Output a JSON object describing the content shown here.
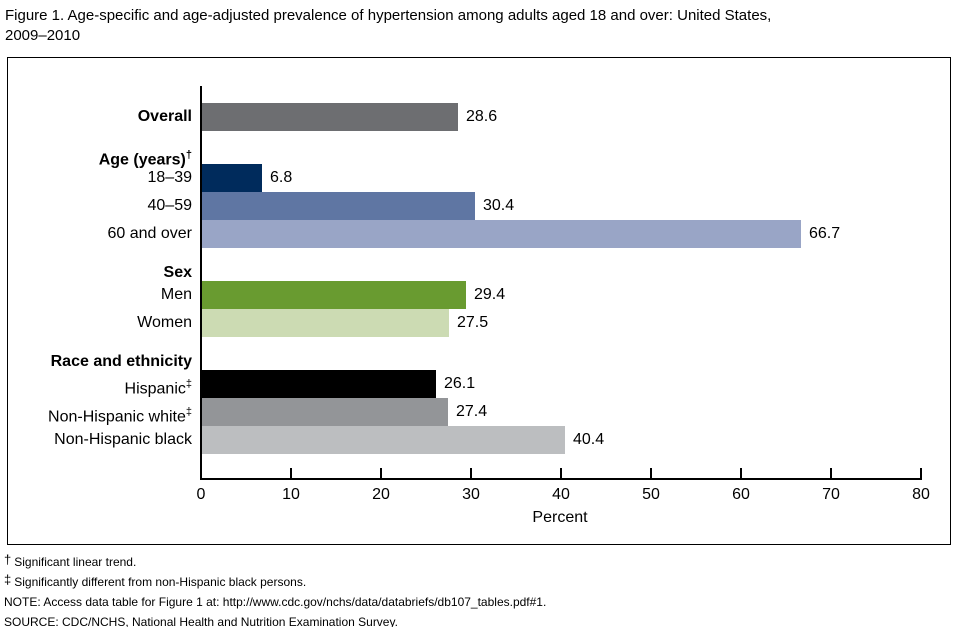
{
  "title": "Figure 1. Age-specific and age-adjusted prevalence of hypertension among adults aged 18 and over: United States,\n2009–2010",
  "chart_data": {
    "type": "bar",
    "orientation": "horizontal",
    "title": "Age-specific and age-adjusted prevalence of hypertension among adults aged 18 and over, United States, 2009–2010",
    "xlabel": "Percent",
    "xlim": [
      0,
      80
    ],
    "xticks": [
      0,
      10,
      20,
      30,
      40,
      50,
      60,
      70,
      80
    ],
    "grid": false,
    "rows": [
      {
        "kind": "bar",
        "label": "Overall",
        "bold": true,
        "value": 28.6,
        "color": "#6d6e71"
      },
      {
        "kind": "header",
        "label": "Age (years)",
        "sup": "†"
      },
      {
        "kind": "bar",
        "label": "18–39",
        "value": 6.8,
        "color": "#002b5c"
      },
      {
        "kind": "bar",
        "label": "40–59",
        "value": 30.4,
        "color": "#5f76a3"
      },
      {
        "kind": "bar",
        "label": "60 and over",
        "value": 66.7,
        "color": "#99a5c6"
      },
      {
        "kind": "header",
        "label": "Sex"
      },
      {
        "kind": "bar",
        "label": "Men",
        "value": 29.4,
        "color": "#699b30"
      },
      {
        "kind": "bar",
        "label": "Women",
        "value": 27.5,
        "color": "#ccdbb3"
      },
      {
        "kind": "header",
        "label": "Race and ethnicity"
      },
      {
        "kind": "bar",
        "label": "Hispanic",
        "sup": "‡",
        "value": 26.1,
        "color": "#000000"
      },
      {
        "kind": "bar",
        "label": "Non-Hispanic white",
        "sup": "‡",
        "value": 27.4,
        "color": "#939598"
      },
      {
        "kind": "bar",
        "label": "Non-Hispanic black",
        "value": 40.4,
        "color": "#bcbec0"
      }
    ]
  },
  "footnotes": [
    {
      "mark": "†",
      "text": "Significant linear trend."
    },
    {
      "mark": "‡",
      "text": "Significantly different from non-Hispanic black persons."
    },
    {
      "mark": "",
      "text": "NOTE: Access data table for Figure 1 at: http://www.cdc.gov/nchs/data/databriefs/db107_tables.pdf#1."
    },
    {
      "mark": "",
      "text": "SOURCE: CDC/NCHS, National Health and Nutrition Examination Survey."
    }
  ]
}
